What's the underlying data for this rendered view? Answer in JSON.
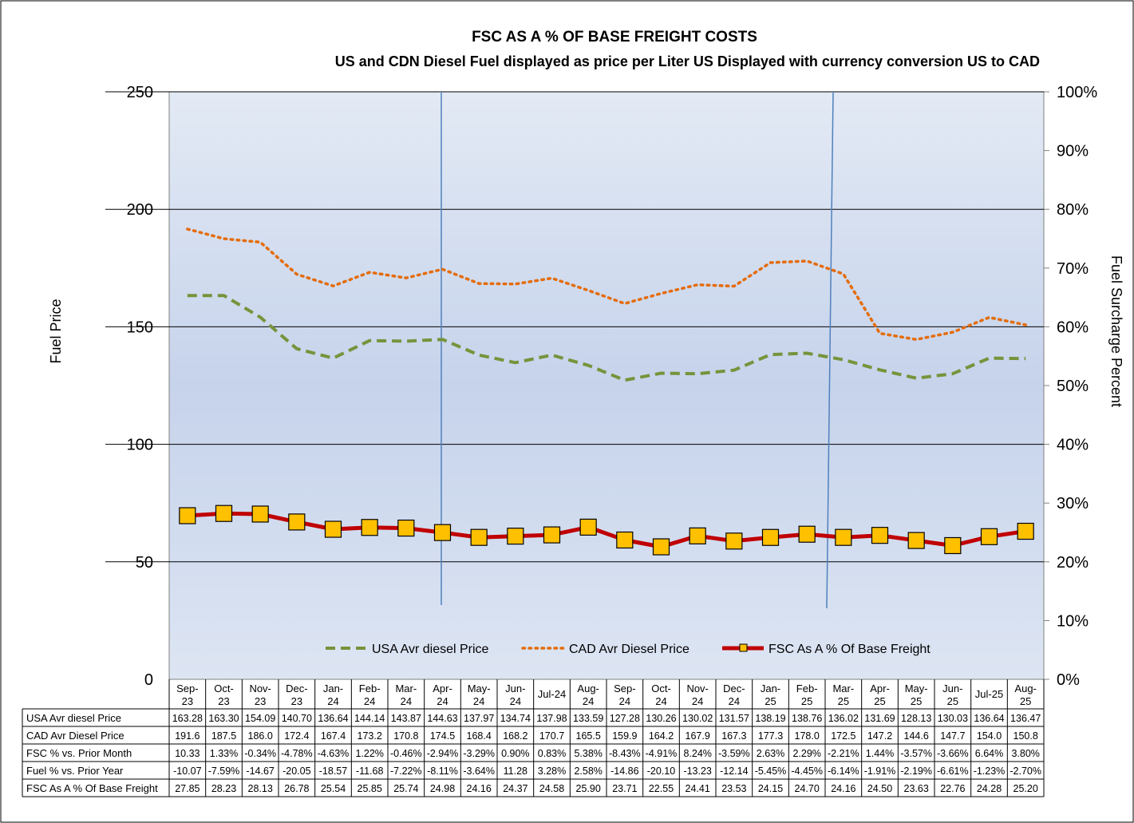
{
  "chart_data": {
    "type": "line",
    "title": "FSC AS A % OF BASE FREIGHT COSTS",
    "subtitle": "US and CDN Diesel Fuel displayed as price per Liter US Displayed with currency conversion US to CAD",
    "ylabel": "Fuel Price",
    "y2label": "Fuel Surcharge Percent",
    "ylim": [
      0,
      250
    ],
    "y2lim": [
      0,
      100
    ],
    "yticks": [
      "0",
      "50",
      "100",
      "150",
      "200",
      "250"
    ],
    "y2ticks": [
      "0%",
      "10%",
      "20%",
      "30%",
      "40%",
      "50%",
      "60%",
      "70%",
      "80%",
      "90%",
      "100%"
    ],
    "grid": true,
    "legend_position": "bottom",
    "categories": [
      [
        "Sep-",
        "23"
      ],
      [
        "Oct-",
        "23"
      ],
      [
        "Nov-",
        "23"
      ],
      [
        "Dec-",
        "23"
      ],
      [
        "Jan-",
        "24"
      ],
      [
        "Feb-",
        "24"
      ],
      [
        "Mar-",
        "24"
      ],
      [
        "Apr-",
        "24"
      ],
      [
        "May-",
        "24"
      ],
      [
        "Jun-",
        "24"
      ],
      [
        "Jul-24"
      ],
      [
        "Aug-",
        "24"
      ],
      [
        "Sep-",
        "24"
      ],
      [
        "Oct-",
        "24"
      ],
      [
        "Nov-",
        "24"
      ],
      [
        "Dec-",
        "24"
      ],
      [
        "Jan-",
        "25"
      ],
      [
        "Feb-",
        "25"
      ],
      [
        "Mar-",
        "25"
      ],
      [
        "Apr-",
        "25"
      ],
      [
        "May-",
        "25"
      ],
      [
        "Jun-",
        "25"
      ],
      [
        "Jul-25"
      ],
      [
        "Aug-",
        "25"
      ]
    ],
    "series": [
      {
        "name": "USA Avr diesel Price",
        "axis": "left",
        "style": "dashed",
        "color": "#77933C",
        "values": [
          163.28,
          163.3,
          154.09,
          140.7,
          136.64,
          144.14,
          143.87,
          144.63,
          137.97,
          134.74,
          137.98,
          133.59,
          127.28,
          130.26,
          130.02,
          131.57,
          138.19,
          138.76,
          136.02,
          131.69,
          128.13,
          130.03,
          136.64,
          136.47
        ],
        "labels": [
          "163.28",
          "163.30",
          "154.09",
          "140.70",
          "136.64",
          "144.14",
          "143.87",
          "144.63",
          "137.97",
          "134.74",
          "137.98",
          "133.59",
          "127.28",
          "130.26",
          "130.02",
          "131.57",
          "138.19",
          "138.76",
          "136.02",
          "131.69",
          "128.13",
          "130.03",
          "136.64",
          "136.47"
        ]
      },
      {
        "name": "CAD Avr Diesel Price",
        "axis": "left",
        "style": "dotted",
        "color": "#E46C0A",
        "values": [
          191.6,
          187.5,
          186.0,
          172.4,
          167.4,
          173.2,
          170.8,
          174.5,
          168.4,
          168.2,
          170.7,
          165.5,
          159.9,
          164.2,
          167.9,
          167.3,
          177.3,
          178.0,
          172.5,
          147.2,
          144.6,
          147.7,
          154.0,
          150.8
        ],
        "labels": [
          "191.6",
          "187.5",
          "186.0",
          "172.4",
          "167.4",
          "173.2",
          "170.8",
          "174.5",
          "168.4",
          "168.2",
          "170.7",
          "165.5",
          "159.9",
          "164.2",
          "167.9",
          "167.3",
          "177.3",
          "178.0",
          "172.5",
          "147.2",
          "144.6",
          "147.7",
          "154.0",
          "150.8"
        ]
      },
      {
        "name": "FSC As A % Of Base Freight",
        "axis": "right",
        "style": "solid-marker",
        "color": "#C00000",
        "marker_color": "#FFC000",
        "values": [
          27.85,
          28.23,
          28.13,
          26.78,
          25.54,
          25.85,
          25.74,
          24.98,
          24.16,
          24.37,
          24.58,
          25.9,
          23.71,
          22.55,
          24.41,
          23.53,
          24.15,
          24.7,
          24.16,
          24.5,
          23.63,
          22.76,
          24.28,
          25.2
        ],
        "labels": [
          "27.85",
          "28.23",
          "28.13",
          "26.78",
          "25.54",
          "25.85",
          "25.74",
          "24.98",
          "24.16",
          "24.37",
          "24.58",
          "25.90",
          "23.71",
          "22.55",
          "24.41",
          "23.53",
          "24.15",
          "24.70",
          "24.16",
          "24.50",
          "23.63",
          "22.76",
          "24.28",
          "25.20"
        ]
      }
    ],
    "table_rows": [
      {
        "name": "FSC % vs. Prior Month",
        "labels": [
          "10.33",
          "1.33%",
          "-0.34%",
          "-4.78%",
          "-4.63%",
          "1.22%",
          "-0.46%",
          "-2.94%",
          "-3.29%",
          "0.90%",
          "0.83%",
          "5.38%",
          "-8.43%",
          "-4.91%",
          "8.24%",
          "-3.59%",
          "2.63%",
          "2.29%",
          "-2.21%",
          "1.44%",
          "-3.57%",
          "-3.66%",
          "6.64%",
          "3.80%"
        ]
      },
      {
        "name": "Fuel % vs. Prior Year",
        "labels": [
          "-10.07",
          "-7.59%",
          "-14.67",
          "-20.05",
          "-18.57",
          "-11.68",
          "-7.22%",
          "-8.11%",
          "-3.64%",
          "11.28",
          "3.28%",
          "2.58%",
          "-14.86",
          "-20.10",
          "-13.23",
          "-12.14",
          "-5.45%",
          "-4.45%",
          "-6.14%",
          "-1.91%",
          "-2.19%",
          "-6.61%",
          "-1.23%",
          "-2.70%"
        ]
      }
    ]
  }
}
